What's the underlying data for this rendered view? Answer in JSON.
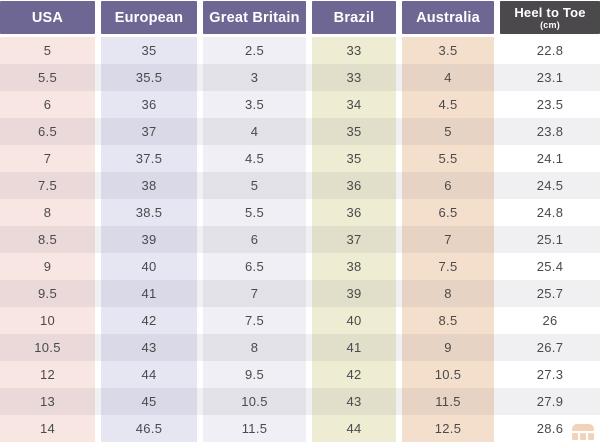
{
  "chart_data": {
    "type": "table",
    "columns": [
      "USA",
      "European",
      "Great Britain",
      "Brazil",
      "Australia",
      "Heel to Toe"
    ],
    "column_keys": [
      "usa",
      "european",
      "great-britain",
      "brazil",
      "australia",
      "heel-to-toe"
    ],
    "heel_unit": "(cm)",
    "rows": [
      [
        "5",
        "35",
        "2.5",
        "33",
        "3.5",
        "22.8"
      ],
      [
        "5.5",
        "35.5",
        "3",
        "33",
        "4",
        "23.1"
      ],
      [
        "6",
        "36",
        "3.5",
        "34",
        "4.5",
        "23.5"
      ],
      [
        "6.5",
        "37",
        "4",
        "35",
        "5",
        "23.8"
      ],
      [
        "7",
        "37.5",
        "4.5",
        "35",
        "5.5",
        "24.1"
      ],
      [
        "7.5",
        "38",
        "5",
        "36",
        "6",
        "24.5"
      ],
      [
        "8",
        "38.5",
        "5.5",
        "36",
        "6.5",
        "24.8"
      ],
      [
        "8.5",
        "39",
        "6",
        "37",
        "7",
        "25.1"
      ],
      [
        "9",
        "40",
        "6.5",
        "38",
        "7.5",
        "25.4"
      ],
      [
        "9.5",
        "41",
        "7",
        "39",
        "8",
        "25.7"
      ],
      [
        "10",
        "42",
        "7.5",
        "40",
        "8.5",
        "26"
      ],
      [
        "10.5",
        "43",
        "8",
        "41",
        "9",
        "26.7"
      ],
      [
        "12",
        "44",
        "9.5",
        "42",
        "10.5",
        "27.3"
      ],
      [
        "13",
        "45",
        "10.5",
        "43",
        "11.5",
        "27.9"
      ],
      [
        "14",
        "46.5",
        "11.5",
        "44",
        "12.5",
        "28.6"
      ]
    ]
  },
  "style": {
    "header_colors": [
      "#6e6794",
      "#6e6794",
      "#6e6794",
      "#6e6794",
      "#6e6794",
      "#4b494b"
    ],
    "column_tints": [
      "#f8e6e3",
      "#e6e6f3",
      "#f0eff5",
      "#eeecd2",
      "#f4dfcc",
      "#ffffff"
    ],
    "row_stripe": "rgba(109,105,125,0.10)",
    "text_color": "#4a4a4c",
    "watermark_color": "#e0914f"
  }
}
